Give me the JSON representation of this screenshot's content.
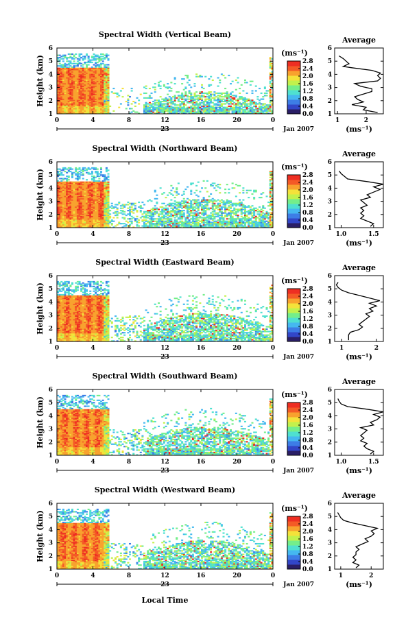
{
  "chart_data": {
    "type": "heatmap",
    "shared": {
      "x_ticks": [
        "0",
        "4",
        "8",
        "12",
        "16",
        "20",
        "0"
      ],
      "date_day": "23",
      "date_month": "Jan 2007",
      "x_label": "Local Time",
      "y_label": "Height (km)",
      "y_ticks": [
        "1",
        "2",
        "3",
        "4",
        "5",
        "6"
      ],
      "ylim": [
        1,
        6
      ],
      "xlim_hours": [
        0,
        24
      ],
      "colorbar_unit": "(ms⁻¹)",
      "colorbar_ticks": [
        "0.0",
        "0.4",
        "0.8",
        "1.2",
        "1.6",
        "2.0",
        "2.4",
        "2.8"
      ],
      "colorbar_range": [
        0,
        2.8
      ],
      "average_title": "Average",
      "average_unit": "(ms⁻¹)",
      "colormap": [
        "#2a1e66",
        "#3246c8",
        "#3d7de6",
        "#45b8f0",
        "#4fe0d0",
        "#74ee8a",
        "#c2f14c",
        "#f4e23a",
        "#f8a22e",
        "#f45a26",
        "#ee2e22"
      ]
    },
    "panels": [
      {
        "title": "Spectral Width (Vertical Beam)",
        "avg_ticks": [
          "1",
          "2"
        ],
        "avg_xlim": [
          0.9,
          2.6
        ],
        "avg_profile": [
          [
            1.1,
            2.4
          ],
          [
            1.3,
            1.9
          ],
          [
            1.5,
            2.0
          ],
          [
            1.7,
            1.5
          ],
          [
            1.9,
            1.9
          ],
          [
            2.1,
            1.7
          ],
          [
            2.3,
            1.6
          ],
          [
            2.5,
            1.9
          ],
          [
            2.7,
            2.2
          ],
          [
            2.9,
            2.2
          ],
          [
            3.1,
            1.8
          ],
          [
            3.3,
            1.6
          ],
          [
            3.5,
            2.4
          ],
          [
            3.7,
            2.5
          ],
          [
            3.9,
            2.4
          ],
          [
            4.1,
            2.5
          ],
          [
            4.3,
            2.2
          ],
          [
            4.5,
            1.5
          ],
          [
            4.6,
            1.2
          ],
          [
            4.8,
            1.4
          ],
          [
            5.0,
            1.3
          ],
          [
            5.2,
            1.2
          ],
          [
            5.4,
            1.05
          ]
        ]
      },
      {
        "title": "Spectral Width (Northward Beam)",
        "avg_ticks": [
          "1.0",
          "1.5"
        ],
        "avg_xlim": [
          0.9,
          1.65
        ],
        "avg_profile": [
          [
            1.1,
            1.45
          ],
          [
            1.3,
            1.5
          ],
          [
            1.5,
            1.4
          ],
          [
            1.7,
            1.3
          ],
          [
            1.9,
            1.35
          ],
          [
            2.1,
            1.3
          ],
          [
            2.3,
            1.35
          ],
          [
            2.5,
            1.3
          ],
          [
            2.7,
            1.4
          ],
          [
            2.9,
            1.35
          ],
          [
            3.1,
            1.3
          ],
          [
            3.3,
            1.45
          ],
          [
            3.5,
            1.4
          ],
          [
            3.7,
            1.5
          ],
          [
            3.9,
            1.6
          ],
          [
            4.1,
            1.5
          ],
          [
            4.3,
            1.65
          ],
          [
            4.5,
            1.4
          ],
          [
            4.7,
            1.1
          ],
          [
            4.9,
            1.05
          ],
          [
            5.1,
            1.0
          ],
          [
            5.3,
            0.97
          ]
        ]
      },
      {
        "title": "Spectral Width (Eastward Beam)",
        "avg_ticks": [
          "1",
          "2"
        ],
        "avg_xlim": [
          0.8,
          2.2
        ],
        "avg_profile": [
          [
            1.1,
            1.2
          ],
          [
            1.3,
            1.2
          ],
          [
            1.5,
            1.2
          ],
          [
            1.7,
            1.25
          ],
          [
            1.9,
            1.5
          ],
          [
            2.1,
            1.6
          ],
          [
            2.3,
            1.5
          ],
          [
            2.5,
            1.6
          ],
          [
            2.7,
            1.7
          ],
          [
            2.9,
            1.8
          ],
          [
            3.1,
            1.7
          ],
          [
            3.3,
            1.9
          ],
          [
            3.5,
            1.8
          ],
          [
            3.7,
            2.0
          ],
          [
            3.9,
            1.8
          ],
          [
            4.1,
            2.1
          ],
          [
            4.3,
            1.8
          ],
          [
            4.5,
            1.5
          ],
          [
            4.7,
            1.2
          ],
          [
            4.9,
            1.0
          ],
          [
            5.1,
            0.9
          ],
          [
            5.3,
            0.85
          ],
          [
            5.5,
            0.9
          ]
        ]
      },
      {
        "title": "Spectral Width (Southward Beam)",
        "avg_ticks": [
          "1.0",
          "1.5"
        ],
        "avg_xlim": [
          0.9,
          1.65
        ],
        "avg_profile": [
          [
            1.1,
            1.45
          ],
          [
            1.3,
            1.5
          ],
          [
            1.5,
            1.4
          ],
          [
            1.7,
            1.35
          ],
          [
            1.9,
            1.4
          ],
          [
            2.1,
            1.3
          ],
          [
            2.3,
            1.35
          ],
          [
            2.5,
            1.3
          ],
          [
            2.7,
            1.35
          ],
          [
            2.9,
            1.4
          ],
          [
            3.1,
            1.3
          ],
          [
            3.3,
            1.5
          ],
          [
            3.5,
            1.45
          ],
          [
            3.7,
            1.55
          ],
          [
            3.9,
            1.6
          ],
          [
            4.1,
            1.5
          ],
          [
            4.3,
            1.65
          ],
          [
            4.5,
            1.4
          ],
          [
            4.7,
            1.1
          ],
          [
            4.9,
            1.0
          ],
          [
            5.1,
            0.97
          ],
          [
            5.3,
            0.95
          ]
        ]
      },
      {
        "title": "Spectral Width (Westward Beam)",
        "avg_ticks": [
          "1",
          "2"
        ],
        "avg_xlim": [
          0.8,
          2.4
        ],
        "avg_profile": [
          [
            1.1,
            1.5
          ],
          [
            1.3,
            1.6
          ],
          [
            1.5,
            1.4
          ],
          [
            1.7,
            1.5
          ],
          [
            1.9,
            1.4
          ],
          [
            2.1,
            1.5
          ],
          [
            2.3,
            1.5
          ],
          [
            2.5,
            1.6
          ],
          [
            2.7,
            1.5
          ],
          [
            2.9,
            1.7
          ],
          [
            3.1,
            1.9
          ],
          [
            3.3,
            1.8
          ],
          [
            3.5,
            2.0
          ],
          [
            3.7,
            2.1
          ],
          [
            3.9,
            2.0
          ],
          [
            4.1,
            2.2
          ],
          [
            4.3,
            1.8
          ],
          [
            4.5,
            1.4
          ],
          [
            4.7,
            1.1
          ],
          [
            4.9,
            1.0
          ],
          [
            5.1,
            0.95
          ],
          [
            5.3,
            0.9
          ]
        ]
      }
    ]
  }
}
